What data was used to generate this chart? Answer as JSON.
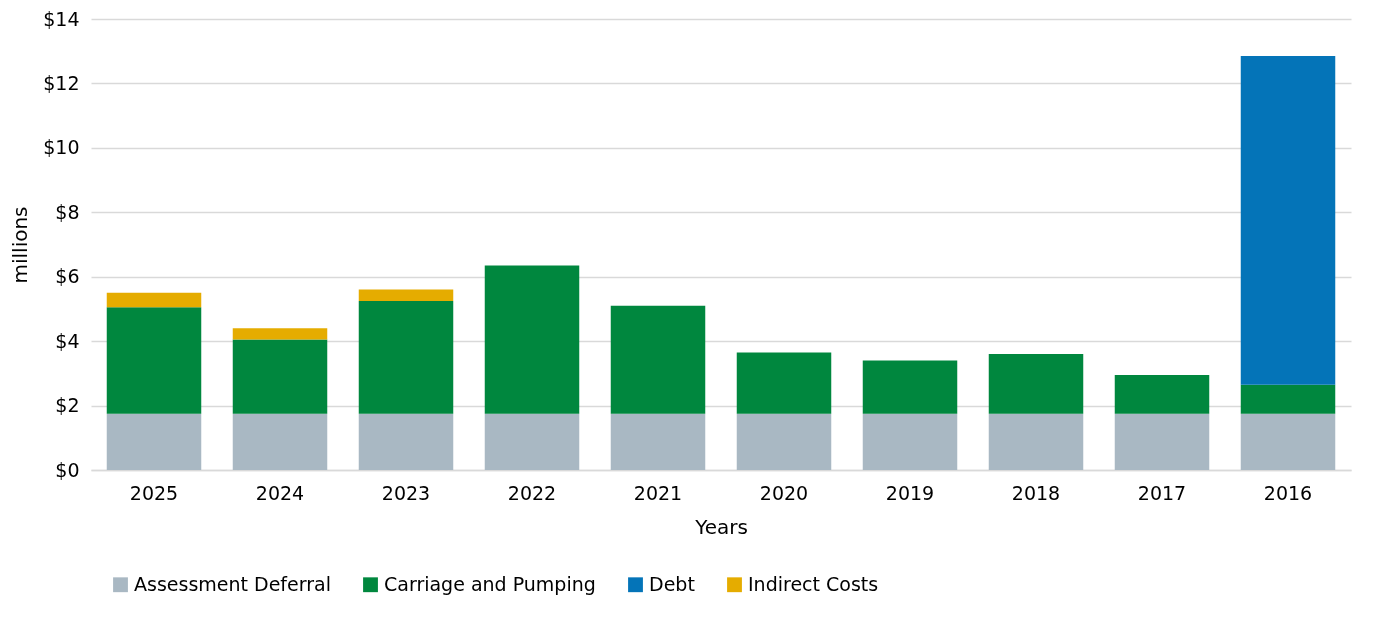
{
  "chart_data": {
    "type": "bar",
    "stacked": true,
    "xlabel": "Years",
    "ylabel": "millions",
    "categories": [
      "2025",
      "2024",
      "2023",
      "2022",
      "2021",
      "2020",
      "2019",
      "2018",
      "2017",
      "2016"
    ],
    "series": [
      {
        "name": "Assessment Deferral",
        "color": "#a9b8c3",
        "values": [
          1.75,
          1.75,
          1.75,
          1.75,
          1.75,
          1.75,
          1.75,
          1.75,
          1.75,
          1.75
        ]
      },
      {
        "name": "Carriage and Pumping",
        "color": "#00873e",
        "values": [
          3.3,
          2.3,
          3.5,
          4.6,
          3.35,
          1.9,
          1.65,
          1.85,
          1.2,
          0.9
        ]
      },
      {
        "name": "Debt",
        "color": "#0474b8",
        "values": [
          null,
          null,
          null,
          null,
          null,
          null,
          null,
          null,
          null,
          10.2
        ]
      },
      {
        "name": "Indirect Costs",
        "color": "#e5ac00",
        "values": [
          0.45,
          0.35,
          0.35,
          null,
          null,
          null,
          null,
          null,
          null,
          null
        ]
      }
    ],
    "ylim": [
      0,
      14
    ],
    "yticks": [
      {
        "value": 0,
        "label": "$0"
      },
      {
        "value": 2,
        "label": "$2"
      },
      {
        "value": 4,
        "label": "$4"
      },
      {
        "value": 6,
        "label": "$6"
      },
      {
        "value": 8,
        "label": "$8"
      },
      {
        "value": 10,
        "label": "$10"
      },
      {
        "value": 12,
        "label": "$12"
      },
      {
        "value": 14,
        "label": "$14"
      }
    ],
    "grid": "y",
    "legend": "bottom"
  }
}
